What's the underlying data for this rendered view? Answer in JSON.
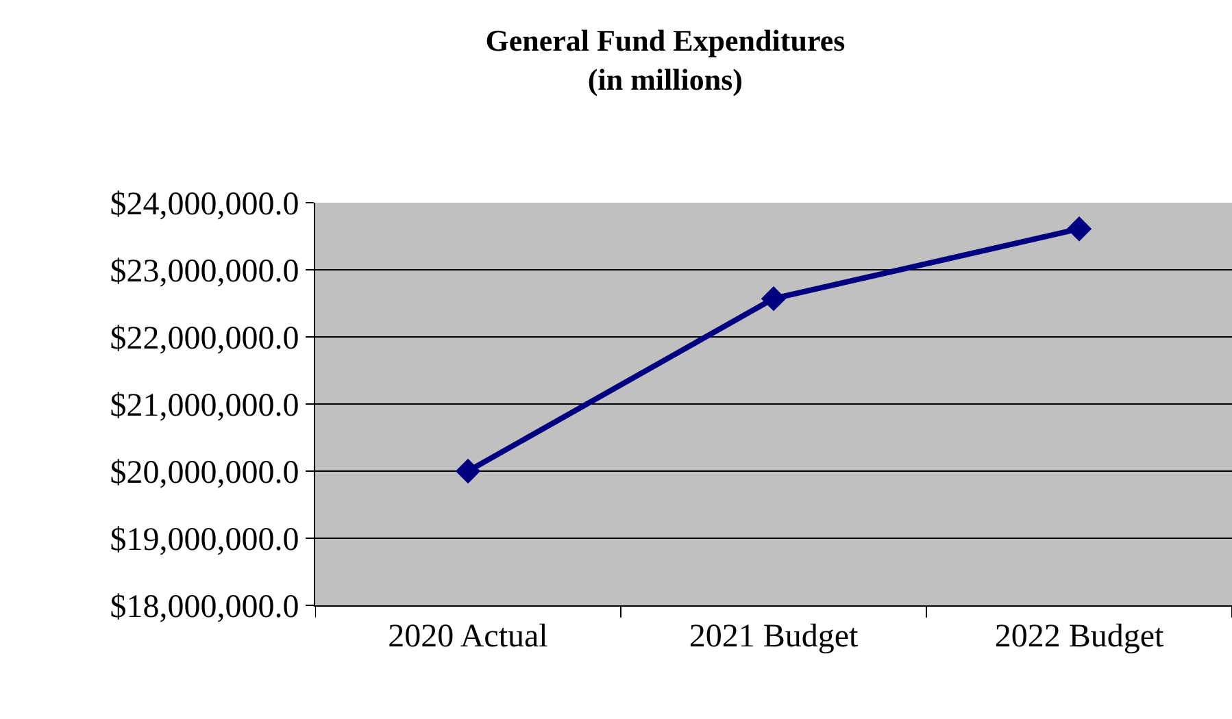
{
  "chart_data": {
    "type": "line",
    "title": "General Fund Expenditures\n(in millions)",
    "categories": [
      "2020 Actual",
      "2021 Budget",
      "2022 Budget"
    ],
    "series": [
      {
        "color": "#000080",
        "values": [
          20000000,
          22570000,
          23610000
        ]
      }
    ],
    "ylim": [
      18000000,
      24000000
    ],
    "yticks": [
      {
        "value": 18000000,
        "label": "$18,000,000.0"
      },
      {
        "value": 19000000,
        "label": "$19,000,000.0"
      },
      {
        "value": 20000000,
        "label": "$20,000,000.0"
      },
      {
        "value": 21000000,
        "label": "$21,000,000.0"
      },
      {
        "value": 22000000,
        "label": "$22,000,000.0"
      },
      {
        "value": 23000000,
        "label": "$23,000,000.0"
      },
      {
        "value": 24000000,
        "label": "$24,000,000.0"
      }
    ],
    "grid": "y",
    "legend": false,
    "marker": "diamond",
    "line_style": "solid"
  }
}
